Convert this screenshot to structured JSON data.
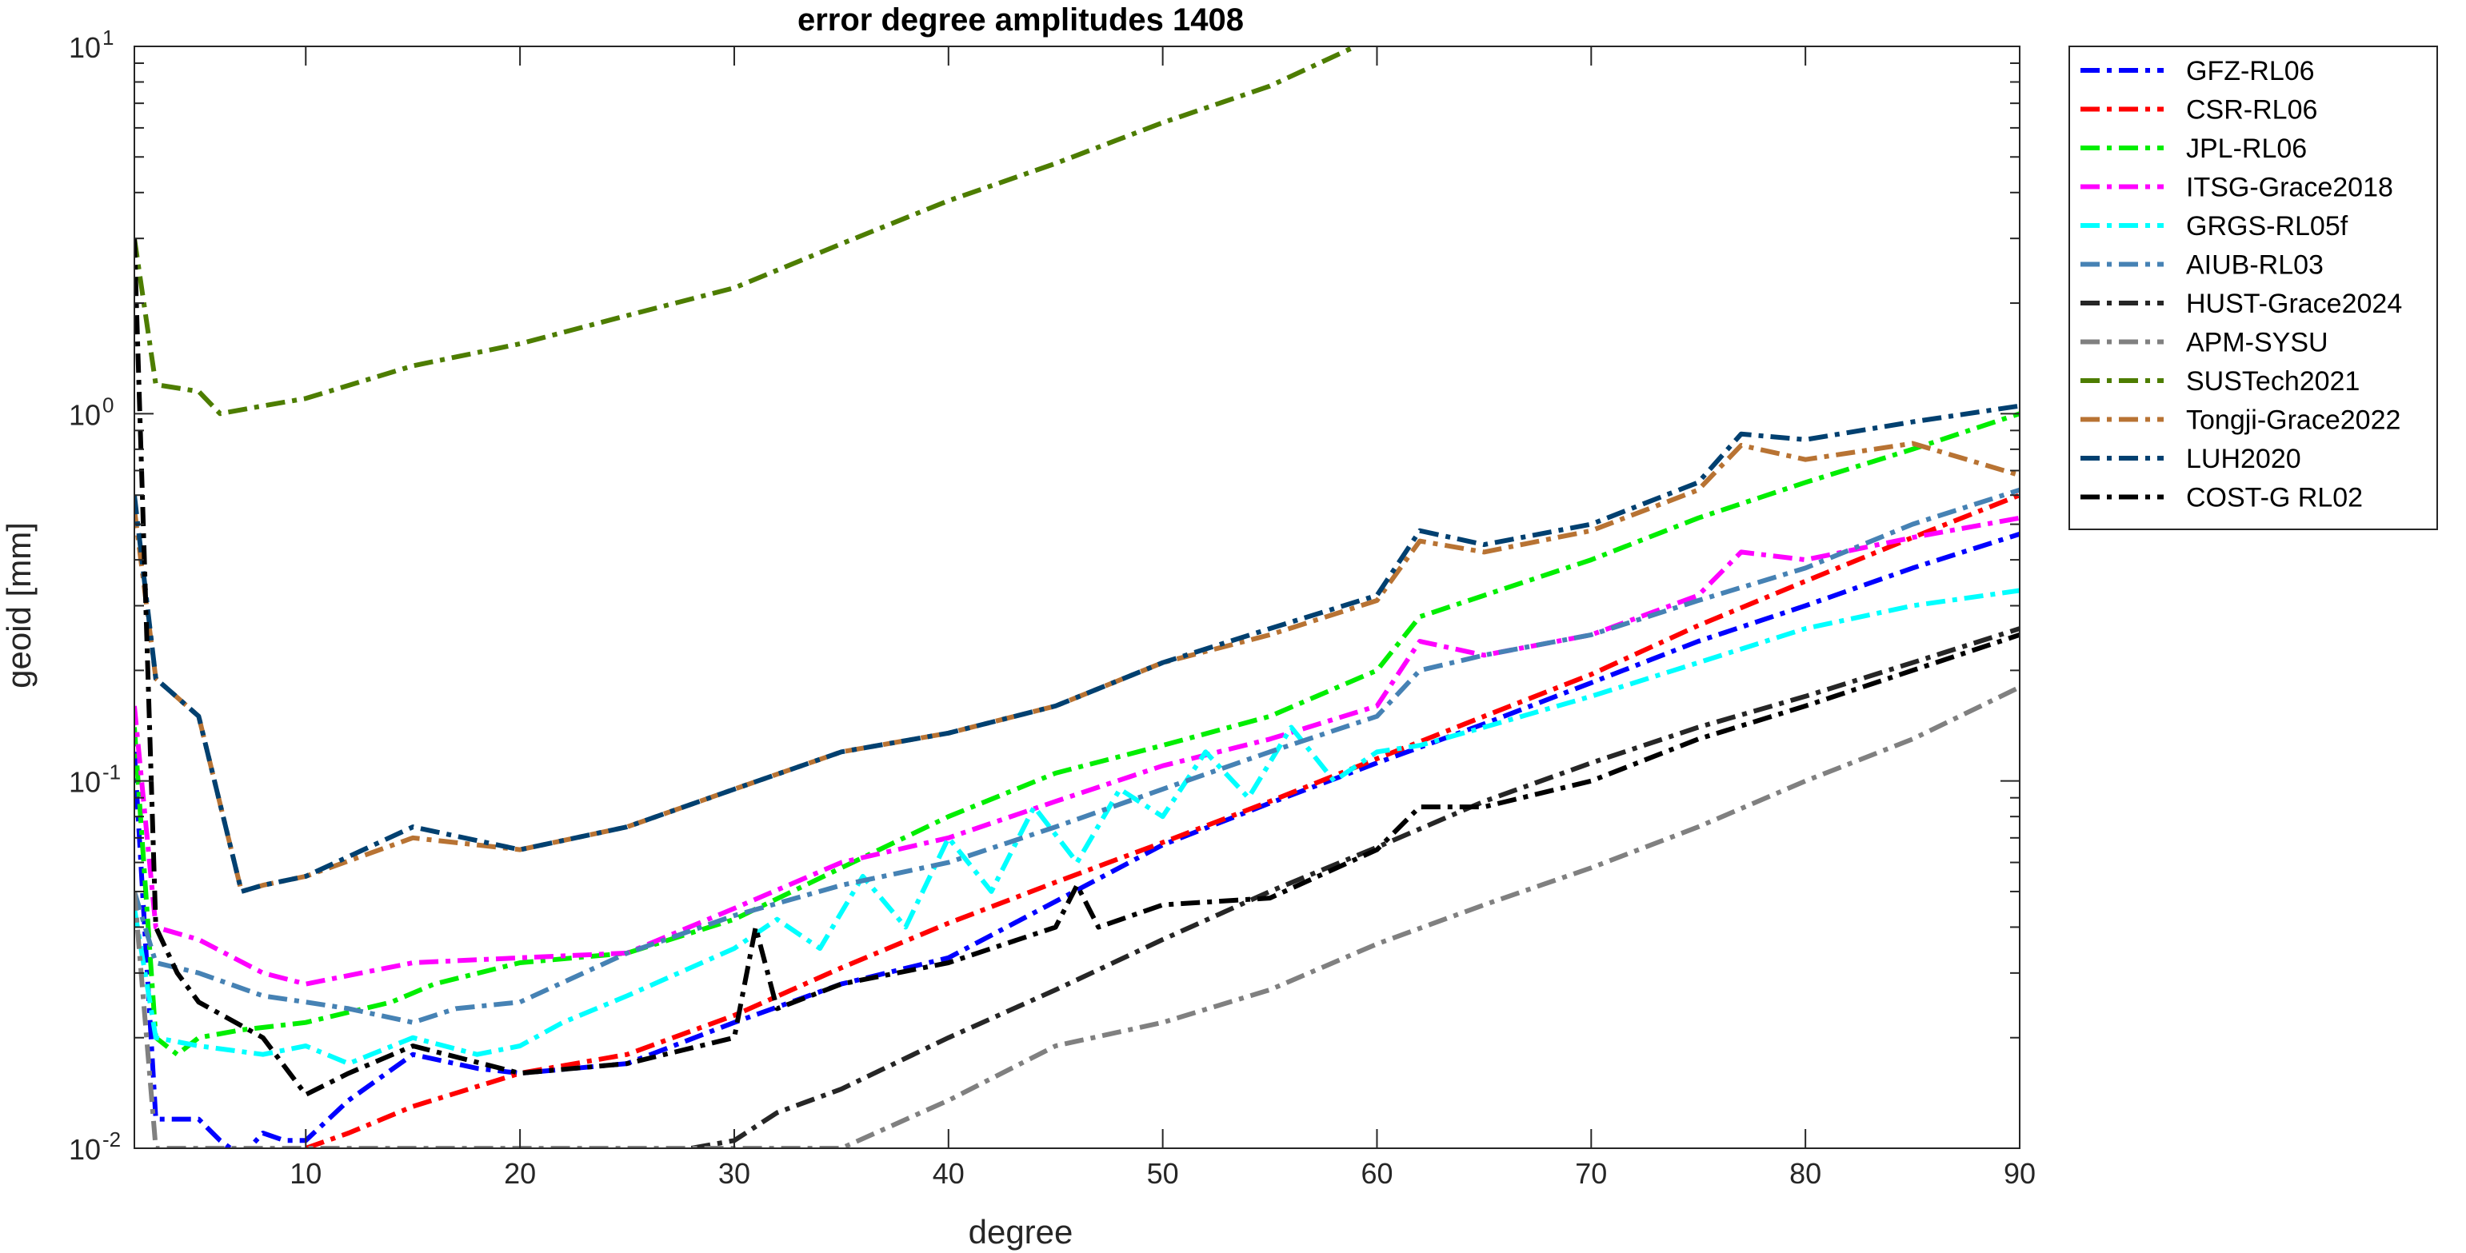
{
  "chart_data": {
    "type": "line",
    "title": "error degree amplitudes 1408",
    "xlabel": "degree",
    "ylabel": "geoid [mm]",
    "xlim": [
      2,
      90
    ],
    "ylim": [
      0.01,
      10
    ],
    "yscale": "log",
    "grid": false,
    "legend_position": "outside-right-top",
    "x_ticks": [
      10,
      20,
      30,
      40,
      50,
      60,
      70,
      80,
      90
    ],
    "x_tick_labels": [
      "10",
      "20",
      "30",
      "40",
      "50",
      "60",
      "70",
      "80",
      "90"
    ],
    "y_ticks": [
      0.01,
      0.1,
      1,
      10
    ],
    "y_tick_labels": [
      {
        "base": "10",
        "exp": "-2"
      },
      {
        "base": "10",
        "exp": "-1"
      },
      {
        "base": "10",
        "exp": "0"
      },
      {
        "base": "10",
        "exp": "1"
      }
    ],
    "series": [
      {
        "name": "GFZ-RL06",
        "color": "#0000ff",
        "x": [
          2,
          3,
          5,
          6,
          7,
          8,
          9,
          10,
          12,
          15,
          18,
          20,
          25,
          30,
          35,
          40,
          45,
          50,
          55,
          60,
          65,
          70,
          75,
          80,
          85,
          90
        ],
        "y": [
          0.12,
          0.012,
          0.012,
          0.0105,
          0.0095,
          0.011,
          0.0105,
          0.0105,
          0.0135,
          0.018,
          0.0165,
          0.016,
          0.017,
          0.022,
          0.028,
          0.033,
          0.047,
          0.067,
          0.087,
          0.112,
          0.143,
          0.185,
          0.24,
          0.3,
          0.38,
          0.47
        ]
      },
      {
        "name": "CSR-RL06",
        "color": "#ff0000",
        "x": [
          10,
          12,
          15,
          20,
          25,
          30,
          35,
          40,
          45,
          50,
          55,
          60,
          65,
          70,
          75,
          80,
          85,
          90
        ],
        "y": [
          0.01,
          0.011,
          0.013,
          0.016,
          0.018,
          0.023,
          0.031,
          0.041,
          0.053,
          0.068,
          0.088,
          0.115,
          0.15,
          0.195,
          0.265,
          0.35,
          0.46,
          0.6
        ]
      },
      {
        "name": "JPL-RL06",
        "color": "#00ee00",
        "x": [
          2,
          3,
          4,
          5,
          7,
          10,
          14,
          16,
          20,
          25,
          30,
          35,
          40,
          45,
          50,
          55,
          60,
          62,
          65,
          70,
          75,
          80,
          85,
          90
        ],
        "y": [
          0.14,
          0.02,
          0.018,
          0.02,
          0.021,
          0.022,
          0.025,
          0.028,
          0.032,
          0.034,
          0.042,
          0.058,
          0.08,
          0.105,
          0.125,
          0.15,
          0.2,
          0.28,
          0.32,
          0.4,
          0.52,
          0.65,
          0.8,
          1.0
        ]
      },
      {
        "name": "ITSG-Grace2018",
        "color": "#ff00ff",
        "x": [
          2,
          3,
          5,
          8,
          10,
          15,
          20,
          25,
          30,
          35,
          40,
          45,
          50,
          55,
          60,
          62,
          65,
          70,
          75,
          77,
          80,
          85,
          90
        ],
        "y": [
          0.16,
          0.04,
          0.037,
          0.03,
          0.028,
          0.032,
          0.033,
          0.034,
          0.045,
          0.06,
          0.07,
          0.088,
          0.11,
          0.13,
          0.16,
          0.24,
          0.22,
          0.25,
          0.32,
          0.42,
          0.4,
          0.46,
          0.52
        ]
      },
      {
        "name": "GRGS-RL05f",
        "color": "#00ffff",
        "x": [
          2,
          3,
          5,
          8,
          10,
          12,
          15,
          18,
          20,
          22,
          25,
          30,
          32,
          34,
          36,
          38,
          40,
          42,
          44,
          46,
          48,
          50,
          52,
          54,
          56,
          58,
          60,
          62,
          65,
          70,
          75,
          80,
          85,
          90
        ],
        "y": [
          0.045,
          0.02,
          0.019,
          0.018,
          0.019,
          0.017,
          0.02,
          0.018,
          0.019,
          0.022,
          0.026,
          0.035,
          0.042,
          0.035,
          0.055,
          0.04,
          0.07,
          0.05,
          0.085,
          0.06,
          0.095,
          0.08,
          0.12,
          0.09,
          0.14,
          0.1,
          0.12,
          0.125,
          0.14,
          0.17,
          0.21,
          0.26,
          0.3,
          0.33
        ]
      },
      {
        "name": "AIUB-RL03",
        "color": "#4682b4",
        "x": [
          2,
          3,
          5,
          8,
          10,
          12,
          15,
          17,
          20,
          25,
          30,
          35,
          40,
          45,
          50,
          55,
          60,
          62,
          65,
          70,
          75,
          80,
          85,
          90
        ],
        "y": [
          0.05,
          0.032,
          0.03,
          0.026,
          0.025,
          0.024,
          0.022,
          0.024,
          0.025,
          0.034,
          0.043,
          0.052,
          0.06,
          0.075,
          0.095,
          0.12,
          0.15,
          0.2,
          0.22,
          0.25,
          0.31,
          0.38,
          0.5,
          0.62
        ]
      },
      {
        "name": "HUST-Grace2024",
        "color": "#262626",
        "x": [
          28,
          30,
          32,
          35,
          40,
          45,
          50,
          55,
          60,
          65,
          70,
          75,
          80,
          85,
          90
        ],
        "y": [
          0.01,
          0.0105,
          0.0125,
          0.0145,
          0.02,
          0.027,
          0.037,
          0.05,
          0.066,
          0.088,
          0.112,
          0.14,
          0.17,
          0.21,
          0.26
        ]
      },
      {
        "name": "APM-SYSU",
        "color": "#808080",
        "x": [
          2,
          3,
          35,
          40,
          45,
          50,
          55,
          60,
          65,
          70,
          75,
          80,
          85,
          90
        ],
        "y": [
          0.05,
          0.01,
          0.01,
          0.0135,
          0.019,
          0.022,
          0.027,
          0.036,
          0.046,
          0.058,
          0.075,
          0.1,
          0.13,
          0.18
        ]
      },
      {
        "name": "SUSTech2021",
        "color": "#4d7d00",
        "x": [
          2,
          3,
          5,
          6,
          8,
          10,
          15,
          20,
          25,
          30,
          35,
          40,
          45,
          50,
          55,
          59
        ],
        "y": [
          3.0,
          1.2,
          1.15,
          1.0,
          1.05,
          1.1,
          1.35,
          1.55,
          1.85,
          2.2,
          2.9,
          3.8,
          4.8,
          6.2,
          7.8,
          10.0
        ]
      },
      {
        "name": "Tongji-Grace2022",
        "color": "#b87333",
        "x": [
          2,
          3,
          5,
          7,
          8,
          10,
          15,
          20,
          25,
          30,
          35,
          40,
          45,
          50,
          55,
          60,
          62,
          65,
          70,
          75,
          77,
          80,
          85,
          90
        ],
        "y": [
          0.55,
          0.19,
          0.15,
          0.05,
          0.052,
          0.055,
          0.07,
          0.065,
          0.075,
          0.095,
          0.12,
          0.135,
          0.16,
          0.21,
          0.25,
          0.31,
          0.45,
          0.42,
          0.48,
          0.62,
          0.82,
          0.75,
          0.83,
          0.68
        ]
      },
      {
        "name": "LUH2020",
        "color": "#004070",
        "x": [
          2,
          3,
          5,
          7,
          8,
          10,
          15,
          20,
          25,
          30,
          35,
          40,
          45,
          50,
          55,
          60,
          62,
          65,
          70,
          75,
          77,
          80,
          85,
          90
        ],
        "y": [
          0.6,
          0.19,
          0.15,
          0.05,
          0.052,
          0.055,
          0.075,
          0.065,
          0.075,
          0.095,
          0.12,
          0.135,
          0.16,
          0.21,
          0.26,
          0.32,
          0.48,
          0.44,
          0.5,
          0.65,
          0.88,
          0.85,
          0.95,
          1.05
        ]
      },
      {
        "name": "COST-G RL02",
        "color": "#000000",
        "x": [
          2,
          3,
          4,
          5,
          8,
          10,
          12,
          15,
          20,
          25,
          30,
          31,
          32,
          35,
          40,
          45,
          46,
          47,
          50,
          55,
          60,
          62,
          65,
          70,
          75,
          80,
          85,
          90
        ],
        "y": [
          3.0,
          0.04,
          0.03,
          0.025,
          0.02,
          0.014,
          0.016,
          0.019,
          0.016,
          0.017,
          0.02,
          0.04,
          0.024,
          0.028,
          0.032,
          0.04,
          0.052,
          0.04,
          0.046,
          0.048,
          0.065,
          0.085,
          0.085,
          0.1,
          0.13,
          0.16,
          0.2,
          0.25
        ]
      }
    ]
  }
}
